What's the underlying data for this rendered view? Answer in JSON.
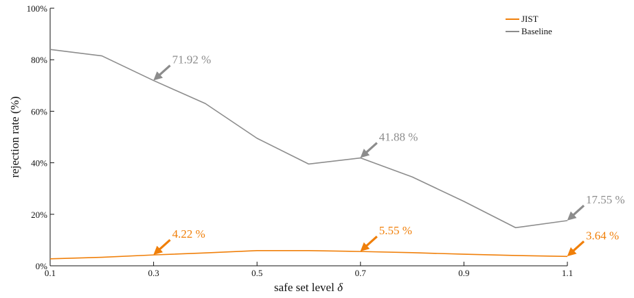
{
  "chart_data": {
    "type": "line",
    "title": "",
    "xlabel": "safe set level",
    "xlabel_symbol": "δ",
    "ylabel": "rejection rate (%)",
    "xlim": [
      0.1,
      1.1
    ],
    "ylim": [
      0,
      100
    ],
    "x_ticks": [
      0.1,
      0.3,
      0.5,
      0.7,
      0.9,
      1.1
    ],
    "x_tick_labels": [
      "0.1",
      "0.3",
      "0.5",
      "0.7",
      "0.9",
      "1.1"
    ],
    "y_ticks": [
      0,
      20,
      40,
      60,
      80,
      100
    ],
    "y_tick_labels": [
      "0%",
      "20%",
      "40%",
      "60%",
      "80%",
      "100%"
    ],
    "grid": false,
    "legend_position": "top-right",
    "x": [
      0.1,
      0.2,
      0.3,
      0.4,
      0.5,
      0.6,
      0.7,
      0.8,
      0.9,
      1.0,
      1.1
    ],
    "series": [
      {
        "name": "JIST",
        "color": "#f07f09",
        "values": [
          2.7,
          3.3,
          4.22,
          5.0,
          5.9,
          5.9,
          5.55,
          5.1,
          4.5,
          4.0,
          3.64
        ]
      },
      {
        "name": "Baseline",
        "color": "#8c8c8c",
        "values": [
          84.0,
          81.5,
          71.92,
          63.0,
          49.5,
          39.5,
          41.88,
          34.5,
          25.0,
          14.8,
          17.55
        ]
      }
    ],
    "annotations": [
      {
        "text": "71.92 %",
        "x": 0.3,
        "y": 71.92,
        "series": "Baseline",
        "color": "#8c8c8c"
      },
      {
        "text": "41.88 %",
        "x": 0.7,
        "y": 41.88,
        "series": "Baseline",
        "color": "#8c8c8c"
      },
      {
        "text": "17.55 %",
        "x": 1.1,
        "y": 17.55,
        "series": "Baseline",
        "color": "#8c8c8c"
      },
      {
        "text": "4.22 %",
        "x": 0.3,
        "y": 4.22,
        "series": "JIST",
        "color": "#f07f09"
      },
      {
        "text": "5.55 %",
        "x": 0.7,
        "y": 5.55,
        "series": "JIST",
        "color": "#f07f09"
      },
      {
        "text": "3.64 %",
        "x": 1.1,
        "y": 3.64,
        "series": "JIST",
        "color": "#f07f09"
      }
    ]
  }
}
